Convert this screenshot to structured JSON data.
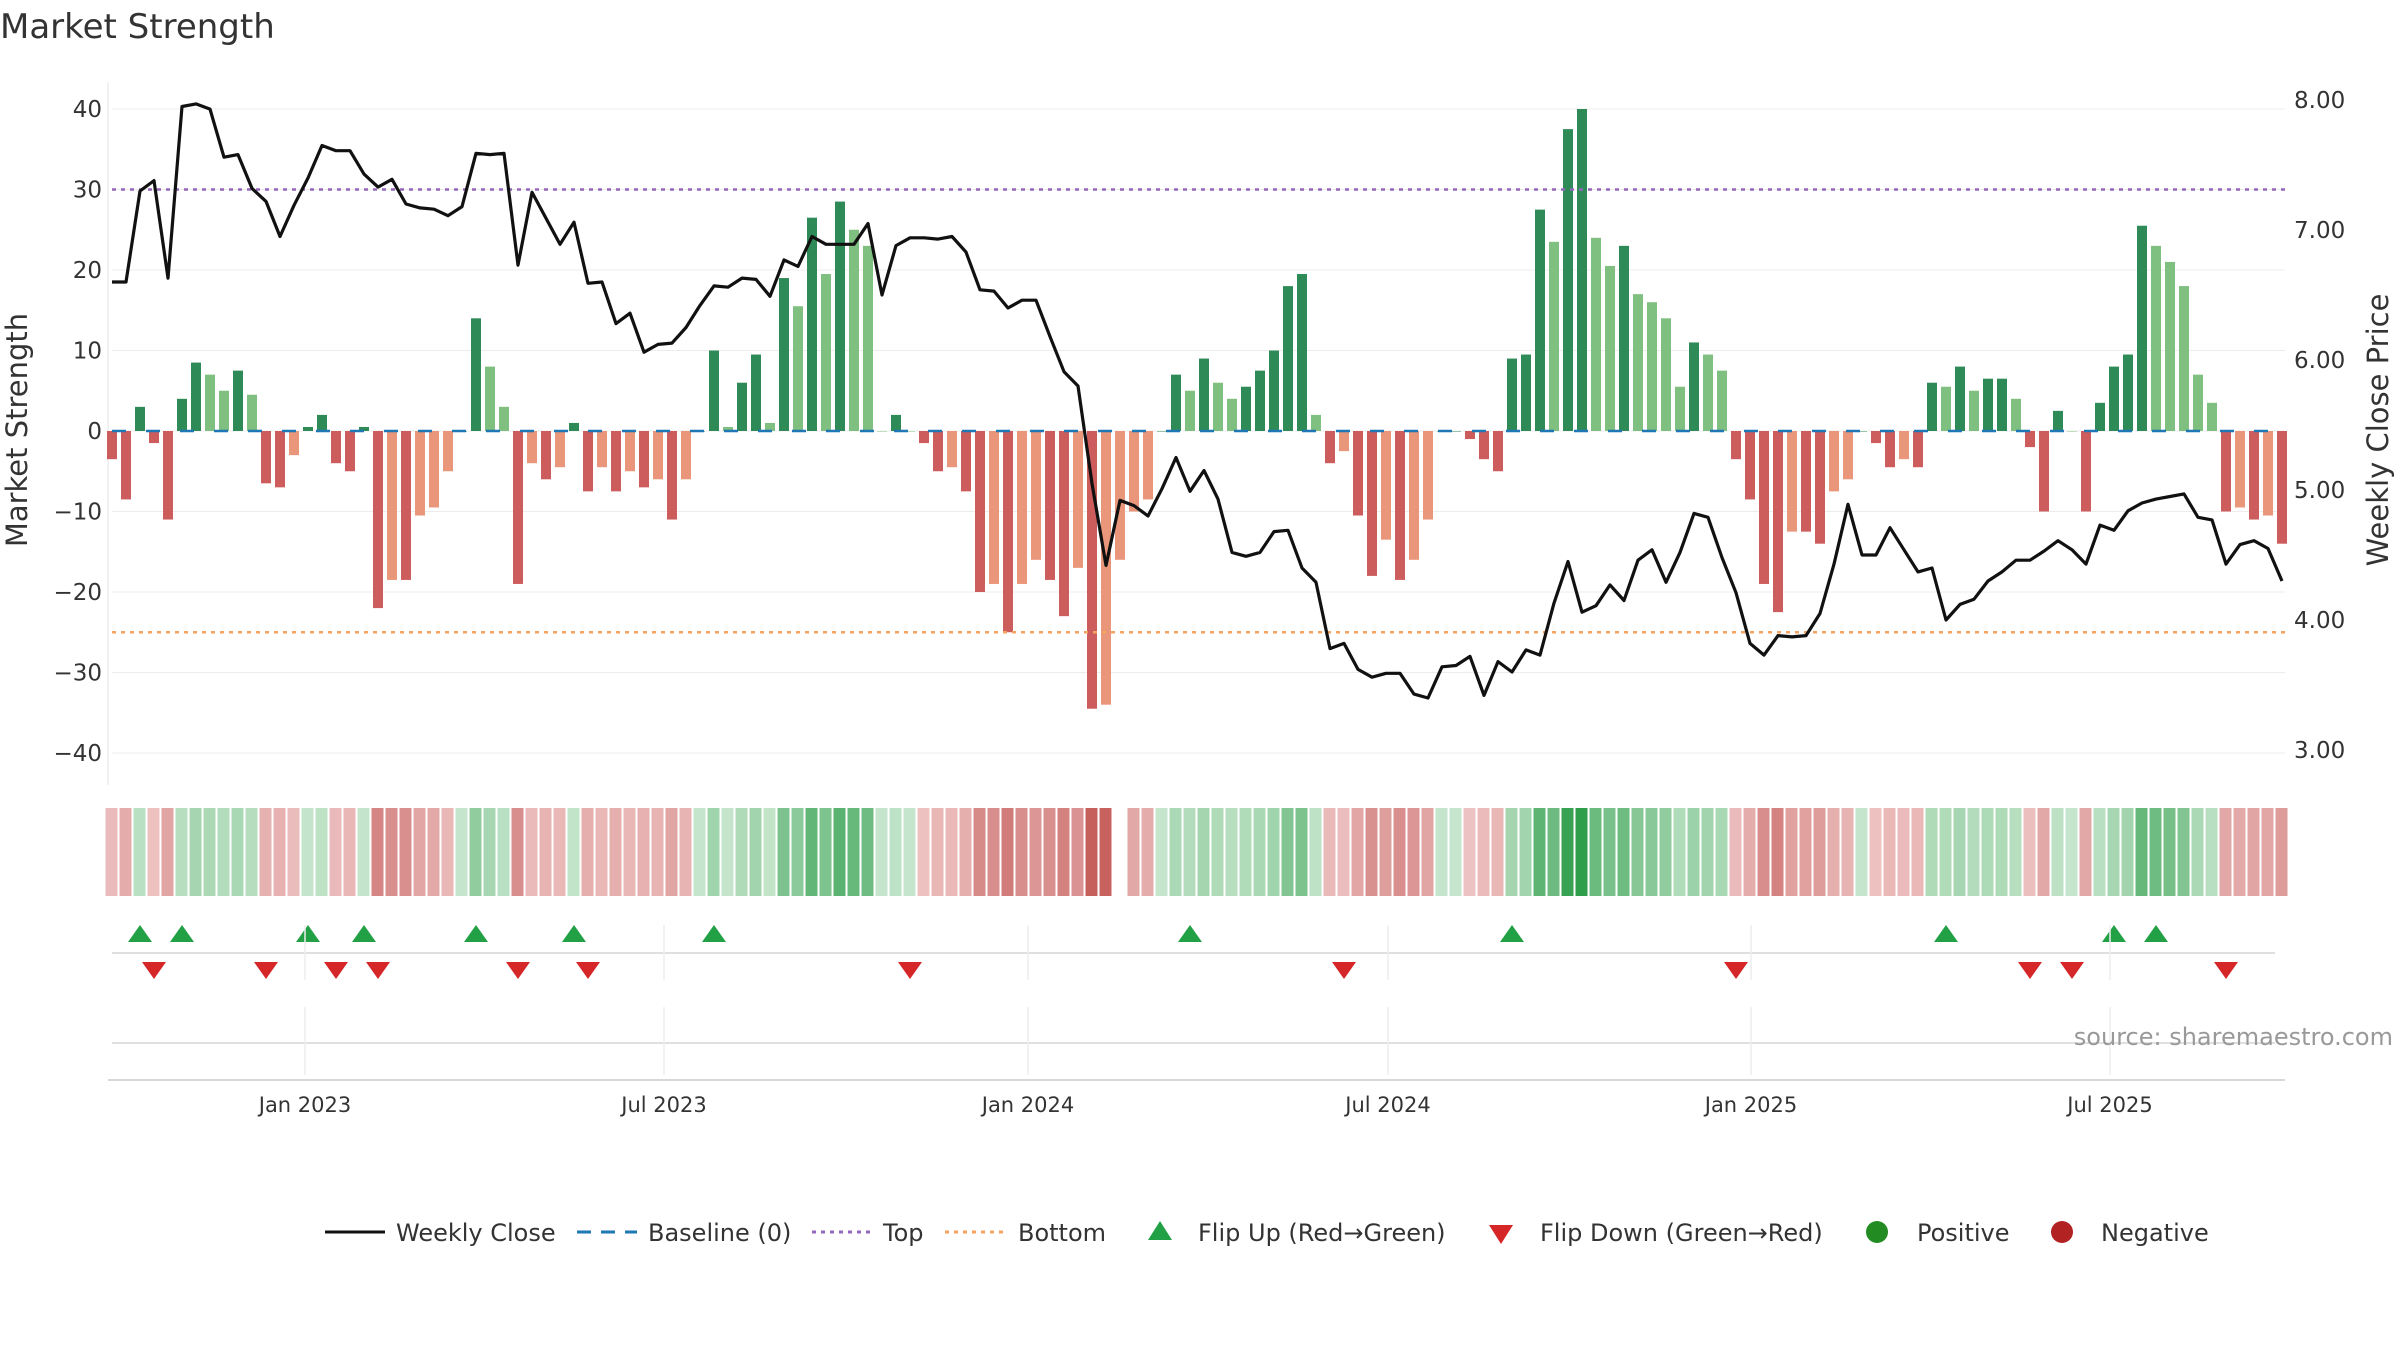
{
  "chart_data": {
    "type": "bar",
    "title": "Market Strength",
    "ylabel_left": "Market Strength",
    "ylabel_right": "Weekly Close Price",
    "left_ticks": [
      "40",
      "30",
      "20",
      "10",
      "0",
      "−10",
      "−20",
      "−30",
      "−40"
    ],
    "right_ticks": [
      "8.00",
      "7.00",
      "6.00",
      "5.00",
      "4.00",
      "3.00"
    ],
    "x_ticks": [
      "Jan 2023",
      "Jul 2023",
      "Jan 2024",
      "Jul 2024",
      "Jan 2025",
      "Jul 2025"
    ],
    "ylim_left": [
      -42,
      42
    ],
    "ylim_right": [
      2.8,
      8.0
    ],
    "top_level": 30,
    "bottom_level": -25,
    "baseline": 0,
    "strength": [
      -3.5,
      -8.5,
      3,
      -1.5,
      -11,
      4,
      8.5,
      7,
      5,
      7.5,
      4.5,
      -6.5,
      -7,
      -3,
      0.5,
      2,
      -4,
      -5,
      0.5,
      -22,
      -18.5,
      -18.5,
      -10.5,
      -9.5,
      -5,
      0,
      14,
      8,
      3,
      -19,
      -4,
      -6,
      -4.5,
      1,
      -7.5,
      -4.5,
      -7.5,
      -5,
      -7,
      -6,
      -11,
      -6,
      0,
      10,
      0.5,
      6,
      9.5,
      1,
      19,
      15.5,
      26.5,
      19.5,
      28.5,
      25,
      23,
      0,
      2,
      0,
      -1.5,
      -5,
      -4.5,
      -7.5,
      -20,
      -19,
      -25,
      -19,
      -16,
      -18.5,
      -23,
      -17,
      -34.5,
      -34,
      -16,
      -10,
      -8.5,
      0,
      7,
      5,
      9,
      6,
      4,
      5.5,
      7.5,
      10,
      18,
      19.5,
      2,
      -4,
      -2.5,
      -10.5,
      -18,
      -13.5,
      -18.5,
      -16,
      -11,
      0,
      0,
      -1,
      -3.5,
      -5,
      9,
      9.5,
      27.5,
      23.5,
      37.5,
      40,
      24,
      20.5,
      23,
      17,
      16,
      14,
      5.5,
      11,
      9.5,
      7.5,
      -3.5,
      -8.5,
      -19,
      -22.5,
      -12.5,
      -12.5,
      -14,
      -7.5,
      -6,
      0,
      -1.5,
      -4.5,
      -3.5,
      -4.5,
      6,
      5.5,
      8,
      5,
      6.5,
      6.5,
      4,
      -2,
      -10,
      2.5,
      0,
      -10,
      3.5,
      8,
      9.5,
      25.5,
      23,
      21,
      18,
      7,
      3.5,
      -10,
      -9.5,
      -11,
      -10.5,
      -14
    ],
    "close": [
      6.6,
      6.6,
      7.3,
      7.38,
      6.63,
      7.95,
      7.97,
      7.93,
      7.56,
      7.58,
      7.32,
      7.22,
      6.95,
      7.19,
      7.4,
      7.65,
      7.61,
      7.61,
      7.43,
      7.33,
      7.39,
      7.2,
      7.17,
      7.16,
      7.11,
      7.18,
      7.59,
      7.58,
      7.59,
      6.73,
      7.29,
      7.09,
      6.89,
      7.06,
      6.59,
      6.6,
      6.28,
      6.36,
      6.06,
      6.12,
      6.13,
      6.25,
      6.42,
      6.57,
      6.56,
      6.63,
      6.62,
      6.49,
      6.77,
      6.72,
      6.95,
      6.89,
      6.89,
      6.89,
      7.05,
      6.5,
      6.88,
      6.94,
      6.94,
      6.93,
      6.95,
      6.83,
      6.54,
      6.53,
      6.4,
      6.46,
      6.46,
      6.18,
      5.91,
      5.8,
      5.05,
      4.42,
      4.92,
      4.88,
      4.8,
      5.01,
      5.25,
      4.99,
      5.15,
      4.93,
      4.52,
      4.49,
      4.52,
      4.68,
      4.69,
      4.4,
      4.29,
      3.78,
      3.82,
      3.62,
      3.56,
      3.59,
      3.59,
      3.43,
      3.4,
      3.64,
      3.65,
      3.72,
      3.42,
      3.68,
      3.6,
      3.77,
      3.73,
      4.13,
      4.45,
      4.06,
      4.11,
      4.27,
      4.15,
      4.46,
      4.54,
      4.29,
      4.52,
      4.82,
      4.79,
      4.48,
      4.21,
      3.82,
      3.73,
      3.88,
      3.87,
      3.88,
      4.05,
      4.43,
      4.89,
      4.5,
      4.5,
      4.71,
      4.54,
      4.37,
      4.4,
      4.0,
      4.12,
      4.16,
      4.3,
      4.37,
      4.46,
      4.46,
      4.53,
      4.61,
      4.54,
      4.43,
      4.73,
      4.69,
      4.84,
      4.9,
      4.93,
      4.95,
      4.97,
      4.79,
      4.77,
      4.43,
      4.58,
      4.61,
      4.55,
      4.3
    ],
    "top_boxes": [
      10,
      11,
      12,
      16,
      44,
      47,
      86,
      89,
      107,
      138,
      147,
      150
    ],
    "flips_up": [
      2,
      5,
      14,
      18,
      26,
      33,
      43,
      77,
      100,
      131,
      143,
      146
    ],
    "flips_down": [
      3,
      11,
      16,
      19,
      29,
      34,
      57,
      88,
      116,
      137,
      140,
      151
    ],
    "legend": [
      "Weekly Close",
      "Baseline (0)",
      "Top",
      "Bottom",
      "Flip Up (Red→Green)",
      "Flip Down (Green→Red)",
      "Positive",
      "Negative"
    ],
    "colors": {
      "dark_green": "#2e8b57",
      "light_green": "#7fbf7f",
      "dark_red": "#cd5c5c",
      "light_red": "#e9967a",
      "close_line": "#111111",
      "baseline": "#1f77b4",
      "top": "#9467bd",
      "bottom": "#f4a460",
      "flip_up": "#22a045",
      "flip_down": "#d62728",
      "positive": "#228b22",
      "negative": "#b22222"
    }
  },
  "source": "source: sharemaestro.com"
}
